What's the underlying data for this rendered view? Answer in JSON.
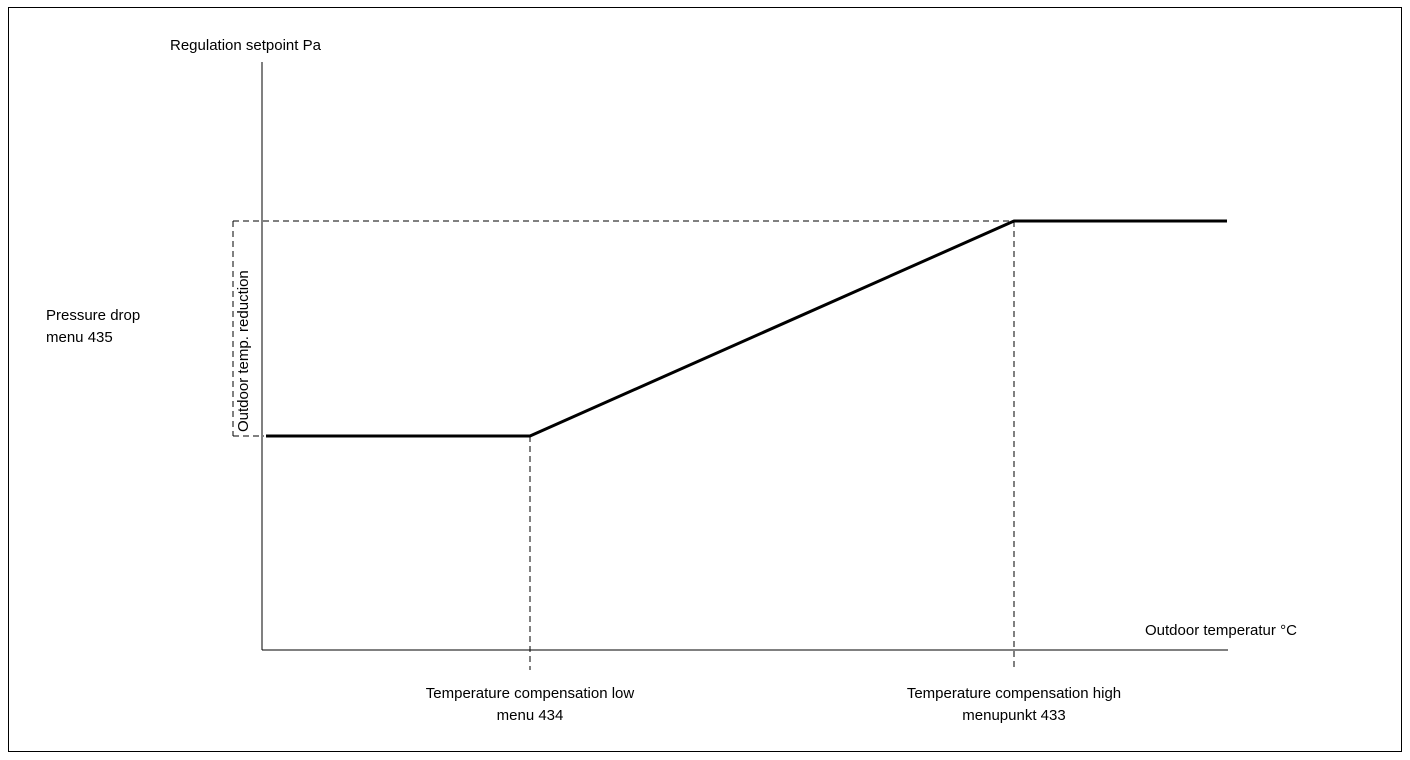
{
  "diagram": {
    "y_axis_title": "Regulation setpoint Pa",
    "x_axis_title": "Outdoor temperatur °C",
    "pressure_drop_label": {
      "line1": "Pressure drop",
      "line2": "menu 435"
    },
    "reduction_label": "Outdoor temp. reduction",
    "comp_low_label": {
      "line1": "Temperature compensation low",
      "line2": "menu 434"
    },
    "comp_high_label": {
      "line1": "Temperature compensation high",
      "line2": "menupunkt 433"
    },
    "colors": {
      "line": "#000000",
      "background": "#ffffff"
    }
  }
}
